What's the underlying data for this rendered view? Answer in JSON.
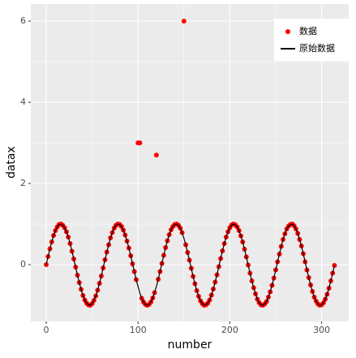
{
  "chart_data": {
    "type": "scatter",
    "x_label": "number",
    "y_label": "datax",
    "x": [
      0,
      2,
      4,
      6,
      8,
      10,
      12,
      14,
      16,
      18,
      20,
      22,
      24,
      26,
      28,
      30,
      32,
      34,
      36,
      38,
      40,
      42,
      44,
      46,
      48,
      50,
      52,
      54,
      56,
      58,
      60,
      62,
      64,
      66,
      68,
      70,
      72,
      74,
      76,
      78,
      80,
      82,
      84,
      86,
      88,
      90,
      92,
      94,
      96,
      98,
      100,
      102,
      104,
      106,
      108,
      110,
      112,
      114,
      116,
      118,
      120,
      122,
      124,
      126,
      128,
      130,
      132,
      134,
      136,
      138,
      140,
      142,
      144,
      146,
      148,
      150,
      152,
      154,
      156,
      158,
      160,
      162,
      164,
      166,
      168,
      170,
      172,
      174,
      176,
      178,
      180,
      182,
      184,
      186,
      188,
      190,
      192,
      194,
      196,
      198,
      200,
      202,
      204,
      206,
      208,
      210,
      212,
      214,
      216,
      218,
      220,
      222,
      224,
      226,
      228,
      230,
      232,
      234,
      236,
      238,
      240,
      242,
      244,
      246,
      248,
      250,
      252,
      254,
      256,
      258,
      260,
      262,
      264,
      266,
      268,
      270,
      272,
      274,
      276,
      278,
      280,
      282,
      284,
      286,
      288,
      290,
      292,
      294,
      296,
      298,
      300,
      302,
      304,
      306,
      308,
      310,
      312,
      314
    ],
    "series": [
      {
        "name": "数据",
        "type": "scatter",
        "color": "#ff0000",
        "values": [
          0,
          0.2,
          0.39,
          0.56,
          0.72,
          0.84,
          0.93,
          0.99,
          1.0,
          0.97,
          0.91,
          0.81,
          0.68,
          0.52,
          0.33,
          0.14,
          -0.06,
          -0.26,
          -0.44,
          -0.61,
          -0.76,
          -0.87,
          -0.95,
          -0.99,
          -1.0,
          -0.96,
          -0.88,
          -0.77,
          -0.63,
          -0.46,
          -0.28,
          -0.08,
          0.12,
          0.31,
          0.49,
          0.66,
          0.79,
          0.9,
          0.97,
          1.0,
          0.99,
          0.94,
          0.85,
          0.73,
          0.58,
          0.41,
          0.22,
          0.02,
          -0.17,
          -0.37,
          3,
          3,
          -0.83,
          -0.92,
          -0.98,
          -1.0,
          -0.98,
          -0.92,
          -0.82,
          -0.69,
          2.7,
          -0.36,
          -0.17,
          0.03,
          0.23,
          0.42,
          0.59,
          0.74,
          0.86,
          0.94,
          0.99,
          1.0,
          0.97,
          0.9,
          0.79,
          6,
          0.49,
          0.3,
          0.11,
          -0.09,
          -0.29,
          -0.47,
          -0.64,
          -0.78,
          -0.89,
          -0.96,
          -1.0,
          -0.99,
          -0.95,
          -0.87,
          -0.75,
          -0.6,
          -0.43,
          -0.25,
          -0.05,
          0.15,
          0.34,
          0.52,
          0.68,
          0.81,
          0.91,
          0.98,
          1.0,
          0.98,
          0.93,
          0.84,
          0.71,
          0.56,
          0.38,
          0.19,
          -0.01,
          -0.21,
          -0.4,
          -0.57,
          -0.72,
          -0.85,
          -0.94,
          -0.99,
          -1.0,
          -0.97,
          -0.91,
          -0.8,
          -0.67,
          -0.51,
          -0.33,
          -0.13,
          0.07,
          0.26,
          0.45,
          0.62,
          0.76,
          0.88,
          0.95,
          0.99,
          1.0,
          0.96,
          0.88,
          0.77,
          0.62,
          0.46,
          0.27,
          0.07,
          -0.13,
          -0.32,
          -0.5,
          -0.66,
          -0.8,
          -0.9,
          -0.97,
          -1.0,
          -0.99,
          -0.94,
          -0.85,
          -0.73,
          -0.58,
          -0.4,
          -0.21,
          -0.02
        ]
      },
      {
        "name": "原始数据",
        "type": "line",
        "color": "#000000",
        "values": [
          0,
          0.2,
          0.39,
          0.56,
          0.72,
          0.84,
          0.93,
          0.99,
          1.0,
          0.97,
          0.91,
          0.81,
          0.68,
          0.52,
          0.33,
          0.14,
          -0.06,
          -0.26,
          -0.44,
          -0.61,
          -0.76,
          -0.87,
          -0.95,
          -0.99,
          -1.0,
          -0.96,
          -0.88,
          -0.77,
          -0.63,
          -0.46,
          -0.28,
          -0.08,
          0.12,
          0.31,
          0.49,
          0.66,
          0.79,
          0.9,
          0.97,
          1.0,
          0.99,
          0.94,
          0.85,
          0.73,
          0.58,
          0.41,
          0.22,
          0.02,
          -0.17,
          -0.37,
          -0.54,
          -0.7,
          -0.83,
          -0.92,
          -0.98,
          -1.0,
          -0.98,
          -0.92,
          -0.82,
          -0.69,
          -0.54,
          -0.36,
          -0.17,
          0.03,
          0.23,
          0.42,
          0.59,
          0.74,
          0.86,
          0.94,
          0.99,
          1.0,
          0.97,
          0.9,
          0.79,
          0.65,
          0.49,
          0.3,
          0.11,
          -0.09,
          -0.29,
          -0.47,
          -0.64,
          -0.78,
          -0.89,
          -0.96,
          -1.0,
          -0.99,
          -0.95,
          -0.87,
          -0.75,
          -0.6,
          -0.43,
          -0.25,
          -0.05,
          0.15,
          0.34,
          0.52,
          0.68,
          0.81,
          0.91,
          0.98,
          1.0,
          0.98,
          0.93,
          0.84,
          0.71,
          0.56,
          0.38,
          0.19,
          -0.01,
          -0.21,
          -0.4,
          -0.57,
          -0.72,
          -0.85,
          -0.94,
          -0.99,
          -1.0,
          -0.97,
          -0.91,
          -0.8,
          -0.67,
          -0.51,
          -0.33,
          -0.13,
          0.07,
          0.26,
          0.45,
          0.62,
          0.76,
          0.88,
          0.95,
          0.99,
          1.0,
          0.96,
          0.88,
          0.77,
          0.62,
          0.46,
          0.27,
          0.07,
          -0.13,
          -0.32,
          -0.5,
          -0.66,
          -0.8,
          -0.9,
          -0.97,
          -1.0,
          -0.99,
          -0.94,
          -0.85,
          -0.73,
          -0.58,
          -0.4,
          -0.21,
          -0.02
        ]
      }
    ],
    "xlim": [
      -16.8,
      329.5
    ],
    "xticks": [
      0,
      100,
      200,
      300
    ],
    "ylim": [
      -1.4,
      6.42
    ],
    "yticks": [
      0,
      2,
      4,
      6
    ],
    "grid": true,
    "legend": "top-right"
  }
}
